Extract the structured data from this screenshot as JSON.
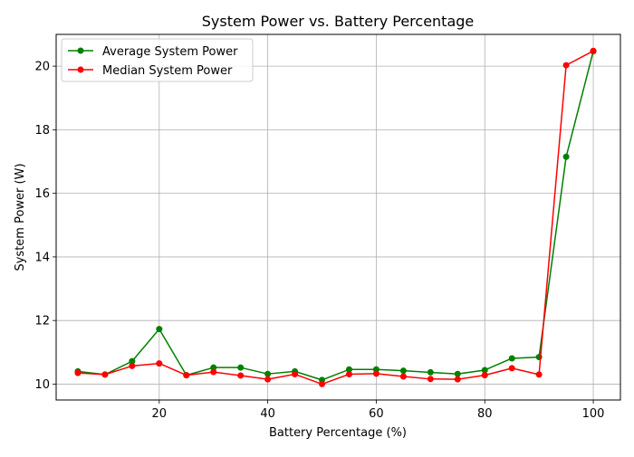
{
  "chart_data": {
    "type": "line",
    "title": "System Power vs. Battery Percentage",
    "xlabel": "Battery Percentage (%)",
    "ylabel": "System Power (W)",
    "xlim": [
      1,
      105
    ],
    "ylim": [
      9.5,
      21.0
    ],
    "xticks": [
      20,
      40,
      60,
      80,
      100
    ],
    "yticks": [
      10,
      12,
      14,
      16,
      18,
      20
    ],
    "grid": true,
    "legend_position": "top-left",
    "x": [
      5,
      10,
      15,
      20,
      25,
      30,
      35,
      40,
      45,
      50,
      55,
      60,
      65,
      70,
      75,
      80,
      85,
      90,
      95,
      100
    ],
    "series": [
      {
        "name": "Average System Power",
        "color": "#008000",
        "values": [
          10.4,
          10.3,
          10.72,
          11.73,
          10.28,
          10.52,
          10.52,
          10.32,
          10.4,
          10.13,
          10.46,
          10.46,
          10.42,
          10.37,
          10.32,
          10.44,
          10.81,
          10.85,
          17.15,
          20.47
        ]
      },
      {
        "name": "Median System Power",
        "color": "#ff0000",
        "values": [
          10.35,
          10.3,
          10.57,
          10.65,
          10.28,
          10.38,
          10.27,
          10.15,
          10.31,
          10.0,
          10.31,
          10.33,
          10.24,
          10.16,
          10.15,
          10.28,
          10.5,
          10.3,
          20.03,
          20.48
        ]
      }
    ]
  }
}
